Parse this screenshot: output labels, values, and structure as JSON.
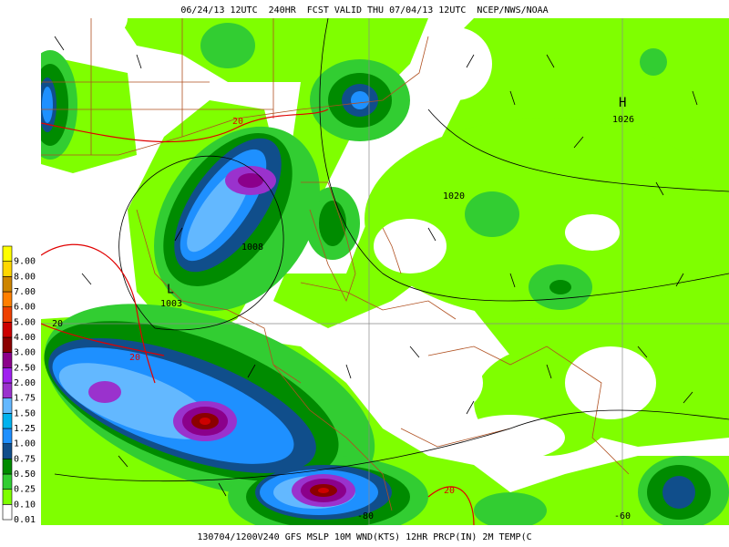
{
  "header": {
    "title": "06/24/13 12UTC  240HR  FCST VALID THU 07/04/13 12UTC  NCEP/NWS/NOAA"
  },
  "footer": {
    "caption": "130704/1200V240 GFS MSLP 10M WND(KTS) 12HR PRCP(IN) 2M TEMP(C"
  },
  "legend": {
    "items": [
      {
        "label": "0.01",
        "color": "#ffffff"
      },
      {
        "label": "0.10",
        "color": "#7fff00"
      },
      {
        "label": "0.25",
        "color": "#32cd32"
      },
      {
        "label": "0.50",
        "color": "#008b00"
      },
      {
        "label": "0.75",
        "color": "#104e8b"
      },
      {
        "label": "1.00",
        "color": "#1e90ff"
      },
      {
        "label": "1.25",
        "color": "#00b2ee"
      },
      {
        "label": "1.50",
        "color": "#63b8ff"
      },
      {
        "label": "1.75",
        "color": "#9a32cd"
      },
      {
        "label": "2.00",
        "color": "#a020f0"
      },
      {
        "label": "2.50",
        "color": "#8b008b"
      },
      {
        "label": "3.00",
        "color": "#8b0000"
      },
      {
        "label": "4.00",
        "color": "#cd0000"
      },
      {
        "label": "5.00",
        "color": "#ee4000"
      },
      {
        "label": "6.00",
        "color": "#ff7f00"
      },
      {
        "label": "7.00",
        "color": "#cd8500"
      },
      {
        "label": "8.00",
        "color": "#ffd700"
      },
      {
        "label": "9.00",
        "color": "#ffff00"
      }
    ]
  },
  "map_labels": [
    "20",
    "1008",
    "L",
    "1003",
    "1020",
    "H",
    "1026",
    "20",
    "20",
    "-80",
    "-60",
    "20"
  ]
}
